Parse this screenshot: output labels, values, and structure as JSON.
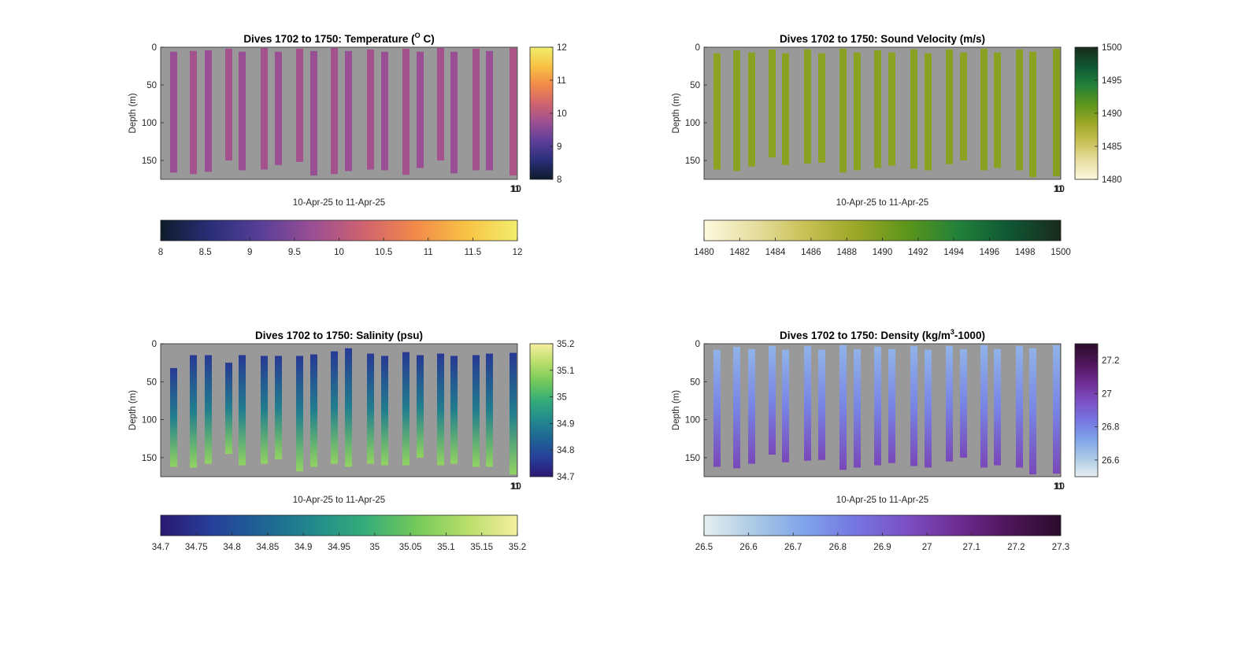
{
  "figure": {
    "background": "#ffffff",
    "plot_background": "#999999"
  },
  "chart_data": [
    {
      "type": "heatmap",
      "title": "Dives 1702 to 1750: Temperature (",
      "title_super": "O",
      "title_end": " C)",
      "xlabel": "10-Apr-25 to 11-Apr-25",
      "ylabel": "Depth (m)",
      "ylim": [
        0,
        175
      ],
      "y_reversed": true,
      "y_ticks": [
        0,
        50,
        100,
        150
      ],
      "x_tick_labels": [
        "11",
        "10"
      ],
      "colormap": [
        "#0d1b2a",
        "#2a2f7a",
        "#5b3f98",
        "#9b4f93",
        "#d0636e",
        "#f28a4a",
        "#f8c244",
        "#f2ee6d"
      ],
      "clim": [
        8,
        12
      ],
      "side_colorbar_ticks": [
        8,
        9,
        10,
        11,
        12
      ],
      "bottom_colorbar_ticks": [
        "8",
        "8.5",
        "9",
        "9.5",
        "10",
        "10.5",
        "11",
        "11.5",
        "12"
      ],
      "profiles": [
        {
          "top": 6,
          "bottom": 166,
          "value": 9.7
        },
        {
          "top": 5,
          "bottom": 168,
          "value": 9.8
        },
        {
          "top": 4,
          "bottom": 165,
          "value": 9.7
        },
        {
          "top": 2,
          "bottom": 150,
          "value": 9.8
        },
        {
          "top": 6,
          "bottom": 163,
          "value": 9.7
        },
        {
          "top": 1,
          "bottom": 162,
          "value": 9.8
        },
        {
          "top": 6,
          "bottom": 156,
          "value": 9.7
        },
        {
          "top": 2,
          "bottom": 152,
          "value": 9.8
        },
        {
          "top": 5,
          "bottom": 170,
          "value": 9.7
        },
        {
          "top": 1,
          "bottom": 168,
          "value": 9.8
        },
        {
          "top": 5,
          "bottom": 164,
          "value": 9.7
        },
        {
          "top": 3,
          "bottom": 162,
          "value": 9.8
        },
        {
          "top": 6,
          "bottom": 163,
          "value": 9.7
        },
        {
          "top": 2,
          "bottom": 169,
          "value": 9.8
        },
        {
          "top": 6,
          "bottom": 160,
          "value": 9.7
        },
        {
          "top": 1,
          "bottom": 150,
          "value": 9.8
        },
        {
          "top": 6,
          "bottom": 167,
          "value": 9.7
        },
        {
          "top": 2,
          "bottom": 163,
          "value": 9.8
        },
        {
          "top": 5,
          "bottom": 163,
          "value": 9.7
        },
        {
          "top": 1,
          "bottom": 170,
          "value": 9.9
        }
      ]
    },
    {
      "type": "heatmap",
      "title": "Dives 1702 to 1750: Sound Velocity (m/s)",
      "title_super": "",
      "title_end": "",
      "xlabel": "10-Apr-25 to 11-Apr-25",
      "ylabel": "Depth (m)",
      "ylim": [
        0,
        175
      ],
      "y_reversed": true,
      "y_ticks": [
        0,
        50,
        100,
        150
      ],
      "x_tick_labels": [
        "11",
        "10"
      ],
      "colormap": [
        "#fdf9de",
        "#e7dea0",
        "#c8c054",
        "#9aa625",
        "#5b951b",
        "#21813a",
        "#0f5634",
        "#1a2a1b"
      ],
      "clim": [
        1480,
        1500
      ],
      "side_colorbar_ticks": [
        1480,
        1485,
        1490,
        1495,
        1500
      ],
      "bottom_colorbar_ticks": [
        "1480",
        "1482",
        "1484",
        "1486",
        "1488",
        "1490",
        "1492",
        "1494",
        "1496",
        "1498",
        "1500"
      ],
      "profiles": [
        {
          "top": 8,
          "bottom": 162,
          "value": 1489.2
        },
        {
          "top": 4,
          "bottom": 164,
          "value": 1489.4
        },
        {
          "top": 7,
          "bottom": 158,
          "value": 1489.3
        },
        {
          "top": 3,
          "bottom": 146,
          "value": 1489.2
        },
        {
          "top": 8,
          "bottom": 156,
          "value": 1489.3
        },
        {
          "top": 3,
          "bottom": 154,
          "value": 1489.4
        },
        {
          "top": 8,
          "bottom": 153,
          "value": 1489.2
        },
        {
          "top": 2,
          "bottom": 166,
          "value": 1489.4
        },
        {
          "top": 7,
          "bottom": 163,
          "value": 1489.3
        },
        {
          "top": 4,
          "bottom": 160,
          "value": 1489.4
        },
        {
          "top": 7,
          "bottom": 157,
          "value": 1489.2
        },
        {
          "top": 3,
          "bottom": 161,
          "value": 1489.4
        },
        {
          "top": 8,
          "bottom": 163,
          "value": 1489.3
        },
        {
          "top": 3,
          "bottom": 155,
          "value": 1489.4
        },
        {
          "top": 7,
          "bottom": 150,
          "value": 1489.2
        },
        {
          "top": 2,
          "bottom": 163,
          "value": 1489.4
        },
        {
          "top": 7,
          "bottom": 160,
          "value": 1489.3
        },
        {
          "top": 3,
          "bottom": 163,
          "value": 1489.4
        },
        {
          "top": 6,
          "bottom": 172,
          "value": 1489.3
        },
        {
          "top": 2,
          "bottom": 171,
          "value": 1489.5
        }
      ]
    },
    {
      "type": "heatmap",
      "title": "Dives 1702 to 1750: Salinity (psu)",
      "title_super": "",
      "title_end": "",
      "xlabel": "10-Apr-25 to 11-Apr-25",
      "ylabel": "Depth (m)",
      "ylim": [
        0,
        175
      ],
      "y_reversed": true,
      "y_ticks": [
        0,
        50,
        100,
        150
      ],
      "x_tick_labels": [
        "11",
        "10"
      ],
      "colormap": [
        "#2b1872",
        "#273f9a",
        "#1e6494",
        "#228a8c",
        "#34ac79",
        "#72c95a",
        "#b8de6a",
        "#f6ef9f"
      ],
      "clim": [
        34.7,
        35.2
      ],
      "side_colorbar_ticks": [
        34.7,
        34.8,
        34.9,
        35.0,
        35.1,
        35.2
      ],
      "side_colorbar_labels": [
        "34.7",
        "34.8",
        "34.9",
        "35",
        "35.1",
        "35.2"
      ],
      "bottom_colorbar_ticks": [
        "34.7",
        "34.75",
        "34.8",
        "34.85",
        "34.9",
        "34.95",
        "35",
        "35.05",
        "35.1",
        "35.15",
        "35.2"
      ],
      "surface_value": 34.76,
      "deep_value": 35.09,
      "profiles": [
        {
          "top": 32,
          "bottom": 162
        },
        {
          "top": 15,
          "bottom": 163
        },
        {
          "top": 15,
          "bottom": 158
        },
        {
          "top": 25,
          "bottom": 145
        },
        {
          "top": 15,
          "bottom": 160
        },
        {
          "top": 16,
          "bottom": 158
        },
        {
          "top": 16,
          "bottom": 152
        },
        {
          "top": 16,
          "bottom": 168
        },
        {
          "top": 14,
          "bottom": 162
        },
        {
          "top": 10,
          "bottom": 158
        },
        {
          "top": 6,
          "bottom": 162
        },
        {
          "top": 13,
          "bottom": 158
        },
        {
          "top": 16,
          "bottom": 160
        },
        {
          "top": 11,
          "bottom": 160
        },
        {
          "top": 15,
          "bottom": 150
        },
        {
          "top": 13,
          "bottom": 160
        },
        {
          "top": 16,
          "bottom": 158
        },
        {
          "top": 15,
          "bottom": 162
        },
        {
          "top": 13,
          "bottom": 162
        },
        {
          "top": 12,
          "bottom": 172
        }
      ]
    },
    {
      "type": "heatmap",
      "title": "Dives 1702 to 1750: Density (kg/m",
      "title_super": "3",
      "title_end": "-1000)",
      "xlabel": "10-Apr-25 to 11-Apr-25",
      "ylabel": "Depth (m)",
      "ylim": [
        0,
        175
      ],
      "y_reversed": true,
      "y_ticks": [
        0,
        50,
        100,
        150
      ],
      "x_tick_labels": [
        "11",
        "10"
      ],
      "colormap": [
        "#e6f0f0",
        "#aac9e5",
        "#7ea2ea",
        "#7574e0",
        "#7c4fc4",
        "#6d2b91",
        "#4d1558",
        "#2a0c2c"
      ],
      "clim": [
        26.5,
        27.3
      ],
      "side_colorbar_ticks": [
        26.6,
        26.8,
        27.0,
        27.2
      ],
      "side_colorbar_labels": [
        "26.6",
        "26.8",
        "27",
        "27.2"
      ],
      "bottom_colorbar_ticks": [
        "26.5",
        "26.6",
        "26.7",
        "26.8",
        "26.9",
        "27",
        "27.1",
        "27.2",
        "27.3"
      ],
      "surface_value": 26.68,
      "deep_value": 26.98,
      "profiles": [
        {
          "top": 8,
          "bottom": 162
        },
        {
          "top": 4,
          "bottom": 164
        },
        {
          "top": 7,
          "bottom": 158
        },
        {
          "top": 3,
          "bottom": 146
        },
        {
          "top": 8,
          "bottom": 156
        },
        {
          "top": 3,
          "bottom": 154
        },
        {
          "top": 8,
          "bottom": 153
        },
        {
          "top": 2,
          "bottom": 166
        },
        {
          "top": 7,
          "bottom": 163
        },
        {
          "top": 4,
          "bottom": 160
        },
        {
          "top": 7,
          "bottom": 157
        },
        {
          "top": 3,
          "bottom": 161
        },
        {
          "top": 8,
          "bottom": 163
        },
        {
          "top": 3,
          "bottom": 155
        },
        {
          "top": 7,
          "bottom": 150
        },
        {
          "top": 2,
          "bottom": 163
        },
        {
          "top": 7,
          "bottom": 160
        },
        {
          "top": 3,
          "bottom": 163
        },
        {
          "top": 6,
          "bottom": 172
        },
        {
          "top": 2,
          "bottom": 171
        }
      ]
    }
  ]
}
